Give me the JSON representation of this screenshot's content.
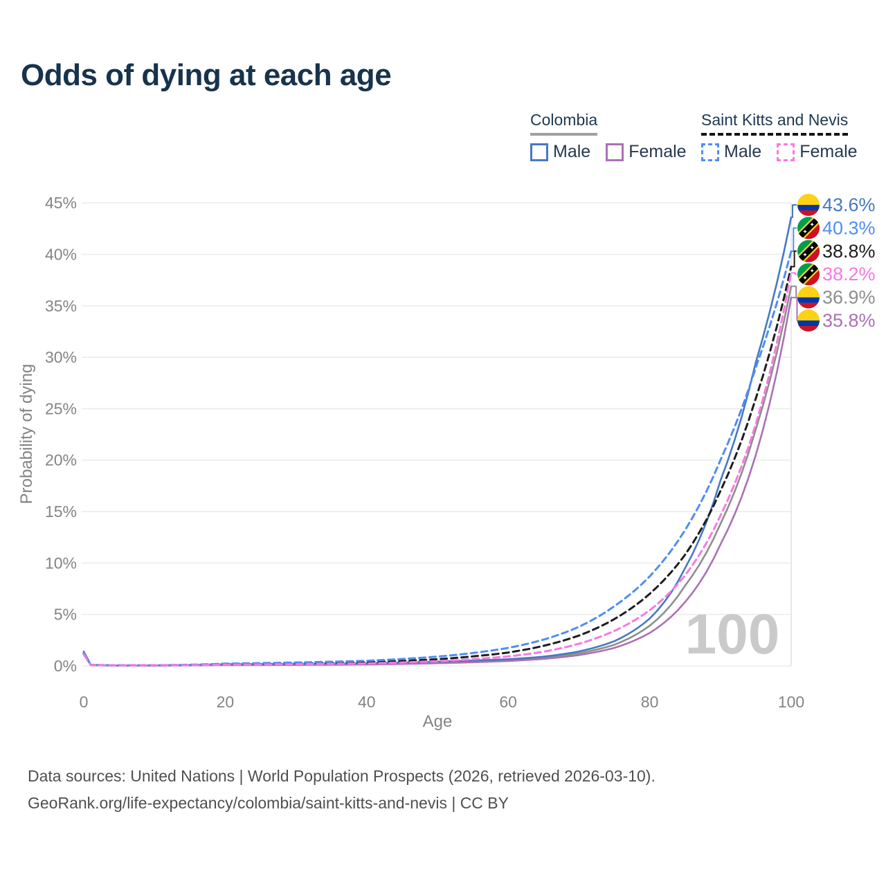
{
  "title": "Odds of dying at each age",
  "legend": {
    "groups": [
      {
        "name": "Colombia",
        "line_style": "solid",
        "underline_color": "#a0a0a0",
        "items": [
          {
            "label": "Male",
            "color": "#4679c2"
          },
          {
            "label": "Female",
            "color": "#ab70b5"
          }
        ]
      },
      {
        "name": "Saint Kitts and Nevis",
        "line_style": "dashed",
        "underline_color": "#141414",
        "items": [
          {
            "label": "Male",
            "color": "#4f8df6"
          },
          {
            "label": "Female",
            "color": "#fa78e1"
          }
        ]
      }
    ]
  },
  "chart_data": {
    "type": "line",
    "title": "Odds of dying at each age",
    "xlabel": "Age",
    "ylabel": "Probability of dying",
    "xlim": [
      0,
      100
    ],
    "ylim": [
      0,
      45
    ],
    "x_ticks": [
      0,
      20,
      40,
      60,
      80,
      100
    ],
    "y_ticks": [
      0,
      5,
      10,
      15,
      20,
      25,
      30,
      35,
      40,
      45
    ],
    "y_tick_suffix": "%",
    "grid": "horizontal",
    "highlight_age": 100,
    "watermark": "100",
    "x": [
      0,
      1,
      5,
      10,
      20,
      30,
      40,
      50,
      55,
      60,
      65,
      70,
      75,
      80,
      85,
      90,
      95,
      100
    ],
    "series": [
      {
        "id": "colombia-both",
        "country": "Colombia",
        "sex": "Both",
        "style": "solid",
        "color": "#8e8e8e",
        "flag": "colombia",
        "end_label": "36.9%",
        "values": [
          1.25,
          0.09,
          0.035,
          0.04,
          0.12,
          0.15,
          0.2,
          0.34,
          0.44,
          0.57,
          0.8,
          1.22,
          2.05,
          3.9,
          7.8,
          13.8,
          23.0,
          36.9
        ]
      },
      {
        "id": "colombia-female",
        "country": "Colombia",
        "sex": "Female",
        "style": "solid",
        "color": "#ab70b5",
        "flag": "colombia",
        "end_label": "35.8%",
        "values": [
          1.1,
          0.08,
          0.03,
          0.03,
          0.07,
          0.09,
          0.14,
          0.26,
          0.35,
          0.48,
          0.68,
          1.05,
          1.75,
          3.2,
          6.2,
          11.8,
          20.5,
          35.8
        ]
      },
      {
        "id": "colombia-male",
        "country": "Colombia",
        "sex": "Male",
        "style": "solid",
        "color": "#4679c2",
        "flag": "colombia",
        "end_label": "43.6%",
        "values": [
          1.4,
          0.1,
          0.04,
          0.05,
          0.16,
          0.2,
          0.26,
          0.42,
          0.52,
          0.65,
          0.9,
          1.4,
          2.4,
          4.6,
          9.5,
          18.0,
          29.5,
          43.6
        ]
      },
      {
        "id": "saint-kitts-and-nevis-both",
        "country": "Saint Kitts and Nevis",
        "sex": "Both",
        "style": "dashed",
        "color": "#1d1d1d",
        "flag": "saint-kitts-and-nevis",
        "end_label": "38.8%",
        "values": [
          1.2,
          0.09,
          0.045,
          0.05,
          0.16,
          0.24,
          0.36,
          0.65,
          0.92,
          1.3,
          1.95,
          2.95,
          4.55,
          7.0,
          10.8,
          17.0,
          26.0,
          38.8
        ]
      },
      {
        "id": "saint-kitts-and-nevis-male",
        "country": "Saint Kitts and Nevis",
        "sex": "Male",
        "style": "dashed",
        "color": "#4f8df6",
        "flag": "saint-kitts-and-nevis",
        "end_label": "40.3%",
        "values": [
          1.3,
          0.1,
          0.05,
          0.06,
          0.22,
          0.33,
          0.5,
          0.9,
          1.25,
          1.75,
          2.55,
          3.8,
          5.8,
          8.7,
          13.2,
          20.0,
          29.0,
          40.3
        ]
      },
      {
        "id": "saint-kitts-and-nevis-female",
        "country": "Saint Kitts and Nevis",
        "sex": "Female",
        "style": "dashed",
        "color": "#fa78e1",
        "flag": "saint-kitts-and-nevis",
        "end_label": "38.2%",
        "values": [
          1.1,
          0.08,
          0.04,
          0.045,
          0.11,
          0.16,
          0.24,
          0.46,
          0.65,
          0.92,
          1.38,
          2.15,
          3.4,
          5.4,
          8.8,
          14.6,
          23.5,
          38.2
        ]
      }
    ]
  },
  "colors": {
    "title": "#17334d",
    "axis_text": "#848484",
    "gridline": "#ececec",
    "highlight_line": "#e2e2e2",
    "watermark": "#cacaca",
    "footer": "#4f4f4f",
    "flag_colombia": [
      "#FCD116",
      "#0038A8",
      "#CE1126"
    ],
    "flag_skn": [
      "#009E49",
      "#CE1126",
      "#000000",
      "#FCD116",
      "#FFFFFF"
    ]
  },
  "footer": {
    "line1": "Data sources: United Nations | World Population Prospects (2026, retrieved 2026-03-10).",
    "line2": "GeoRank.org/life-expectancy/colombia/saint-kitts-and-nevis | CC BY"
  }
}
